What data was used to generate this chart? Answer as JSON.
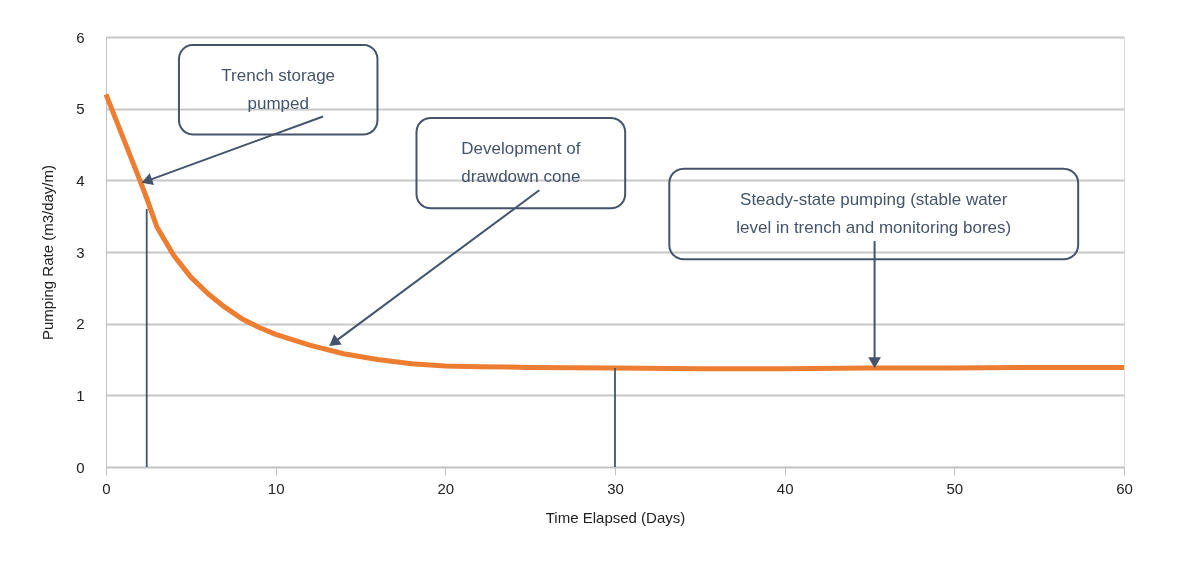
{
  "chart_data": {
    "type": "line",
    "xlabel": "Time Elapsed (Days)",
    "ylabel": "Pumping Rate (m3/day/m)",
    "xlim": [
      0,
      60
    ],
    "xticks": [
      0,
      10,
      20,
      30,
      40,
      50,
      60
    ],
    "ylim": [
      0,
      6
    ],
    "yticks": [
      0,
      1,
      2,
      3,
      4,
      5,
      6
    ],
    "grid": "y",
    "marker": "none",
    "line_style": "solid",
    "series": [
      {
        "color": "#ed7d31",
        "x": [
          0,
          1,
          2,
          2.4,
          3,
          4,
          5,
          6,
          7,
          8,
          9,
          10,
          12,
          14,
          16,
          18,
          20,
          22,
          25,
          30,
          35,
          40,
          45,
          50,
          55,
          60
        ],
        "values": [
          5.2,
          4.6,
          4.0,
          3.75,
          3.35,
          2.95,
          2.65,
          2.42,
          2.23,
          2.07,
          1.95,
          1.85,
          1.7,
          1.58,
          1.5,
          1.44,
          1.41,
          1.4,
          1.39,
          1.38,
          1.37,
          1.37,
          1.38,
          1.38,
          1.39,
          1.39
        ]
      },
      {
        "color": "#44546a",
        "x": [
          2.4,
          2.4
        ],
        "values": [
          0,
          3.6
        ]
      },
      {
        "color": "#44546a",
        "x": [
          30,
          30
        ],
        "values": [
          0,
          1.38
        ]
      }
    ],
    "annotations": [
      {
        "text": "Trench storage\npumped",
        "x": 2.5,
        "y": 4.0
      },
      {
        "text": "Development of\ndrawdown cone",
        "x": 13.5,
        "y": 1.75
      },
      {
        "text": "Steady-state pumping (stable water\nlevel in trench and monitoring bores)",
        "x": 45.3,
        "y": 1.48
      }
    ]
  }
}
